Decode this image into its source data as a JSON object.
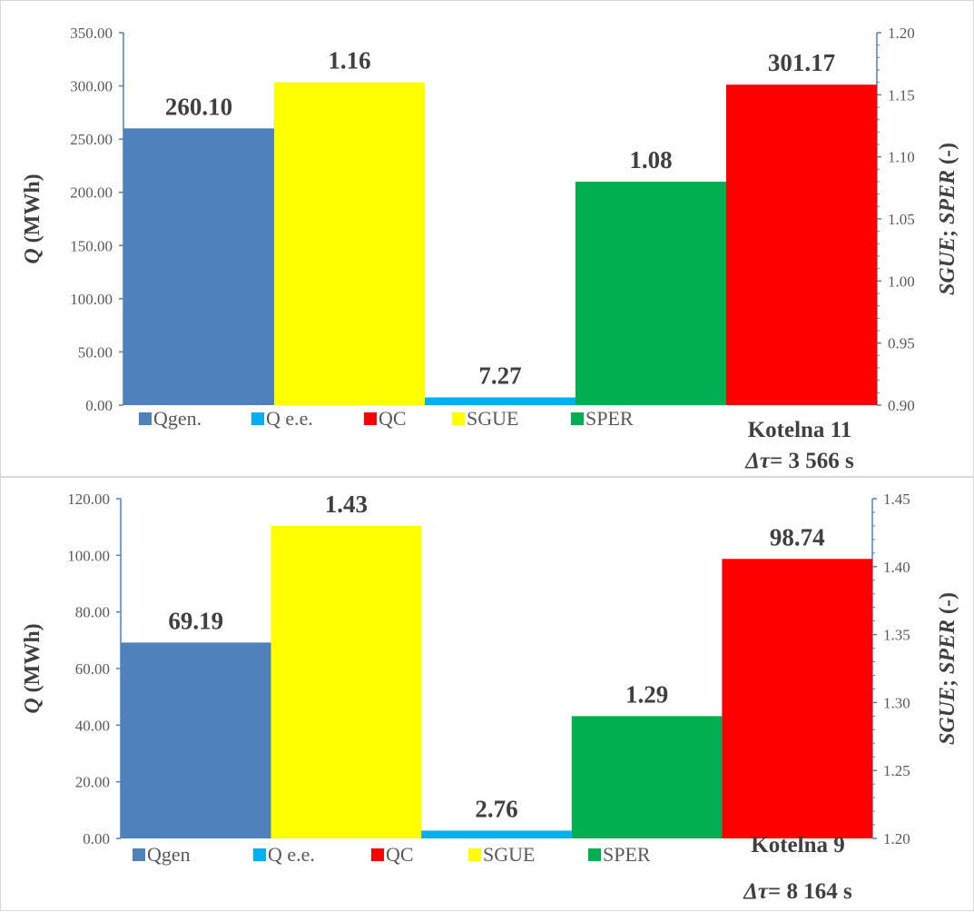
{
  "colors": {
    "qgen": "#4F81BD",
    "qee": "#00B0F0",
    "qc": "#FF0000",
    "sgue": "#FFFF00",
    "sper": "#00B050",
    "axis": "#4F81BD"
  },
  "chart_data": [
    {
      "type": "bar",
      "left_axis_title_italic": "Q",
      "left_axis_title_rest": " (MWh)",
      "right_axis_title_a": "SGUE",
      "right_axis_title_sep": "; ",
      "right_axis_title_b": "SPER",
      "right_axis_title_unit": " (-)",
      "ylim_left": [
        0,
        350
      ],
      "ylim_right": [
        0.9,
        1.2
      ],
      "left_ticks": [
        "0.00",
        "50.00",
        "100.00",
        "150.00",
        "200.00",
        "250.00",
        "300.00",
        "350.00"
      ],
      "right_ticks": [
        "0.90",
        "0.95",
        "1.00",
        "1.05",
        "1.10",
        "1.15",
        "1.20"
      ],
      "bars": [
        {
          "series": "Qgen.",
          "axis": "left",
          "value": 260.1,
          "label": "260.10",
          "color_key": "qgen"
        },
        {
          "series": "SGUE",
          "axis": "right",
          "value": 1.16,
          "label": "1.16",
          "color_key": "sgue"
        },
        {
          "series": "Q e.e.",
          "axis": "left",
          "value": 7.27,
          "label": "7.27",
          "color_key": "qee"
        },
        {
          "series": "SPER",
          "axis": "right",
          "value": 1.08,
          "label": "1.08",
          "color_key": "sper"
        },
        {
          "series": "QC",
          "axis": "left",
          "value": 301.17,
          "label": "301.17",
          "color_key": "qc"
        }
      ],
      "legend": [
        {
          "name": "Qgen.",
          "color_key": "qgen"
        },
        {
          "name": "Q e.e.",
          "color_key": "qee"
        },
        {
          "name": "QC",
          "color_key": "qc"
        },
        {
          "name": "SGUE",
          "color_key": "sgue"
        },
        {
          "name": "SPER",
          "color_key": "sper"
        }
      ],
      "note_line1": "Kotelna 11",
      "note_prefix": "Δτ",
      "note_value": "= 3 566 s"
    },
    {
      "type": "bar",
      "left_axis_title_italic": "Q",
      "left_axis_title_rest": " (MWh)",
      "right_axis_title_a": "SGUE",
      "right_axis_title_sep": "; ",
      "right_axis_title_b": "SPER",
      "right_axis_title_unit": " (-)",
      "ylim_left": [
        0,
        120
      ],
      "ylim_right": [
        1.2,
        1.45
      ],
      "left_ticks": [
        "0.00",
        "20.00",
        "40.00",
        "60.00",
        "80.00",
        "100.00",
        "120.00"
      ],
      "right_ticks": [
        "1.20",
        "1.25",
        "1.30",
        "1.35",
        "1.40",
        "1.45"
      ],
      "bars": [
        {
          "series": "Qgen",
          "axis": "left",
          "value": 69.19,
          "label": "69.19",
          "color_key": "qgen"
        },
        {
          "series": "SGUE",
          "axis": "right",
          "value": 1.43,
          "label": "1.43",
          "color_key": "sgue"
        },
        {
          "series": "Q e.e.",
          "axis": "left",
          "value": 2.76,
          "label": "2.76",
          "color_key": "qee"
        },
        {
          "series": "SPER",
          "axis": "right",
          "value": 1.29,
          "label": "1.29",
          "color_key": "sper"
        },
        {
          "series": "QC",
          "axis": "left",
          "value": 98.74,
          "label": "98.74",
          "color_key": "qc"
        }
      ],
      "legend": [
        {
          "name": "Qgen",
          "color_key": "qgen"
        },
        {
          "name": "Q e.e.",
          "color_key": "qee"
        },
        {
          "name": "QC",
          "color_key": "qc"
        },
        {
          "name": "SGUE",
          "color_key": "sgue"
        },
        {
          "name": "SPER",
          "color_key": "sper"
        }
      ],
      "note_line1": "Kotelna 9",
      "note_prefix": "Δτ",
      "note_value": "= 8 164 s"
    }
  ]
}
